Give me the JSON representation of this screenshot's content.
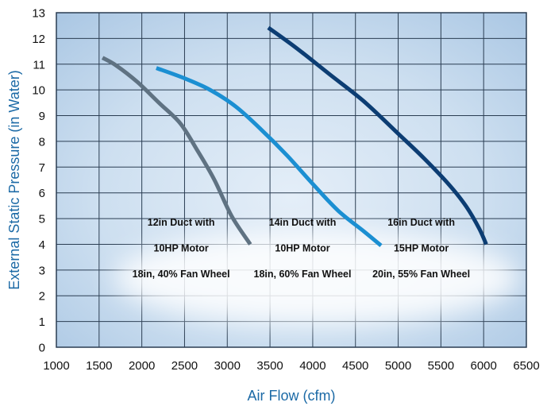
{
  "chart_data": {
    "type": "line",
    "title": "",
    "xlabel": "Air Flow (cfm)",
    "ylabel": "External Static Pressure (in Water)",
    "xlim": [
      1000,
      6500
    ],
    "ylim": [
      0,
      13
    ],
    "xticks": [
      1000,
      1500,
      2000,
      2500,
      3000,
      3500,
      4000,
      4500,
      5000,
      5500,
      6000,
      6500
    ],
    "yticks": [
      0,
      1,
      2,
      3,
      4,
      5,
      6,
      7,
      8,
      9,
      10,
      11,
      12,
      13
    ],
    "grid": true,
    "series": [
      {
        "color": "#5f7282",
        "points": [
          [
            1540,
            11.25
          ],
          [
            1700,
            10.95
          ],
          [
            1950,
            10.3
          ],
          [
            2200,
            9.5
          ],
          [
            2450,
            8.7
          ],
          [
            2650,
            7.65
          ],
          [
            2850,
            6.5
          ],
          [
            3050,
            5.1
          ],
          [
            3270,
            4.0
          ]
        ]
      },
      {
        "color": "#1b8fd2",
        "points": [
          [
            2170,
            10.85
          ],
          [
            2500,
            10.45
          ],
          [
            2800,
            10.0
          ],
          [
            3100,
            9.35
          ],
          [
            3400,
            8.45
          ],
          [
            3700,
            7.45
          ],
          [
            4000,
            6.35
          ],
          [
            4300,
            5.3
          ],
          [
            4600,
            4.5
          ],
          [
            4800,
            3.95
          ]
        ]
      },
      {
        "color": "#0c3d73",
        "points": [
          [
            3480,
            12.42
          ],
          [
            3800,
            11.65
          ],
          [
            4200,
            10.6
          ],
          [
            4600,
            9.55
          ],
          [
            5000,
            8.3
          ],
          [
            5300,
            7.35
          ],
          [
            5600,
            6.3
          ],
          [
            5800,
            5.45
          ],
          [
            5950,
            4.6
          ],
          [
            6030,
            4.0
          ]
        ]
      }
    ],
    "annotations": [
      {
        "x": 2460,
        "lines": [
          "12in Duct with",
          "10HP Motor",
          "18in, 40% Fan Wheel"
        ]
      },
      {
        "x": 3880,
        "lines": [
          "14in Duct with",
          "10HP Motor",
          "18in, 60% Fan Wheel"
        ]
      },
      {
        "x": 5270,
        "lines": [
          "16in Duct with",
          "15HP Motor",
          "20in, 55% Fan Wheel"
        ]
      }
    ]
  }
}
